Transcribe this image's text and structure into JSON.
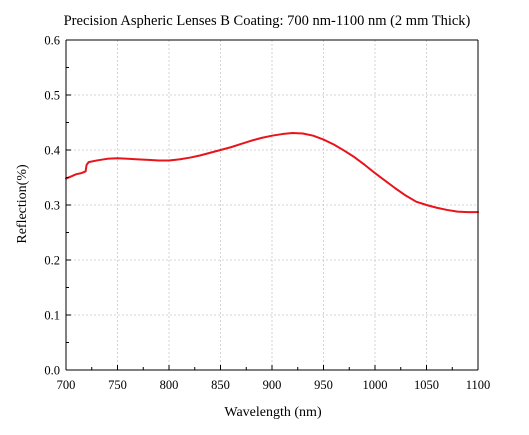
{
  "chart_data": {
    "type": "line",
    "title": "Precision Aspheric Lenses B Coating: 700 nm-1100 nm (2 mm Thick)",
    "xlabel": "Wavelength (nm)",
    "ylabel": "Reflection(%)",
    "xlim": [
      700,
      1100
    ],
    "ylim": [
      0.0,
      0.6
    ],
    "xticks": [
      "700",
      "750",
      "800",
      "850",
      "900",
      "950",
      "1000",
      "1050",
      "1100"
    ],
    "yticks": [
      "0.0",
      "0.1",
      "0.2",
      "0.3",
      "0.4",
      "0.5",
      "0.6"
    ],
    "grid": true,
    "series": [
      {
        "color": "#e8141b",
        "x": [
          700,
          705,
          710,
          715,
          719,
          720,
          722,
          730,
          740,
          750,
          760,
          770,
          780,
          790,
          800,
          810,
          820,
          830,
          840,
          850,
          860,
          870,
          880,
          890,
          900,
          910,
          920,
          930,
          940,
          950,
          960,
          970,
          980,
          990,
          1000,
          1010,
          1020,
          1030,
          1040,
          1050,
          1060,
          1070,
          1080,
          1090,
          1100
        ],
        "y": [
          0.348,
          0.352,
          0.356,
          0.358,
          0.361,
          0.373,
          0.378,
          0.381,
          0.384,
          0.385,
          0.384,
          0.383,
          0.382,
          0.381,
          0.381,
          0.383,
          0.386,
          0.39,
          0.395,
          0.4,
          0.405,
          0.411,
          0.417,
          0.422,
          0.426,
          0.429,
          0.431,
          0.43,
          0.426,
          0.419,
          0.41,
          0.399,
          0.387,
          0.373,
          0.358,
          0.344,
          0.33,
          0.317,
          0.306,
          0.3,
          0.295,
          0.291,
          0.288,
          0.287,
          0.287
        ]
      }
    ]
  }
}
